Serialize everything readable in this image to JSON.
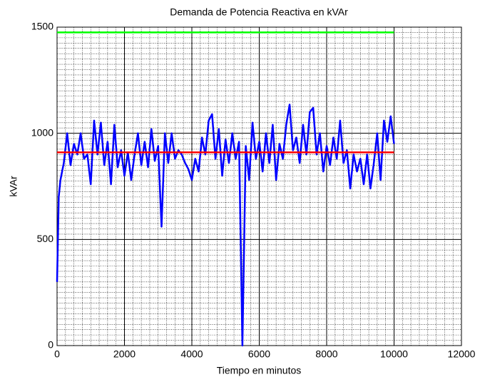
{
  "chart_data": {
    "type": "line",
    "title": "Demanda de Potencia Reactiva en kVAr",
    "x_label": "Tiempo en minutos",
    "y_label": "kVAr",
    "xlim": [
      0,
      12000
    ],
    "xticks": [
      0,
      2000,
      4000,
      6000,
      8000,
      10000,
      12000
    ],
    "ylim": [
      0,
      1500
    ],
    "yticks": [
      0,
      500,
      1000,
      1500
    ],
    "grid": true,
    "minor_grid": true,
    "series": [
      {
        "color": "#0000ff",
        "x": [
          0,
          50,
          100,
          200,
          300,
          400,
          500,
          600,
          700,
          800,
          900,
          1000,
          1100,
          1200,
          1300,
          1400,
          1500,
          1600,
          1700,
          1800,
          1900,
          2000,
          2100,
          2200,
          2300,
          2400,
          2500,
          2600,
          2700,
          2800,
          2900,
          3000,
          3100,
          3200,
          3300,
          3400,
          3500,
          3600,
          3700,
          3800,
          3900,
          4000,
          4100,
          4200,
          4300,
          4400,
          4500,
          4600,
          4700,
          4800,
          4900,
          5000,
          5100,
          5200,
          5300,
          5400,
          5500,
          5600,
          5700,
          5800,
          5900,
          6000,
          6100,
          6200,
          6300,
          6400,
          6500,
          6600,
          6700,
          6800,
          6900,
          7000,
          7100,
          7200,
          7300,
          7400,
          7500,
          7600,
          7700,
          7800,
          7900,
          8000,
          8100,
          8200,
          8300,
          8400,
          8500,
          8600,
          8700,
          8800,
          8900,
          9000,
          9100,
          9200,
          9300,
          9400,
          9500,
          9600,
          9700,
          9800,
          9900,
          10000
        ],
        "values": [
          300,
          700,
          780,
          860,
          1000,
          850,
          950,
          900,
          1000,
          880,
          900,
          760,
          1060,
          900,
          1050,
          850,
          960,
          760,
          1040,
          840,
          920,
          800,
          910,
          780,
          900,
          1000,
          850,
          960,
          840,
          1020,
          870,
          940,
          560,
          1000,
          860,
          1000,
          880,
          920,
          900,
          860,
          830,
          780,
          880,
          820,
          980,
          900,
          1060,
          1090,
          880,
          1020,
          800,
          970,
          860,
          1000,
          880,
          960,
          0,
          940,
          780,
          1050,
          880,
          960,
          820,
          1000,
          860,
          1040,
          780,
          950,
          880,
          1040,
          1135,
          920,
          980,
          860,
          1040,
          900,
          1100,
          1120,
          900,
          1000,
          820,
          940,
          850,
          980,
          880,
          1060,
          860,
          920,
          740,
          900,
          820,
          880,
          760,
          900,
          740,
          860,
          1000,
          780,
          1060,
          960,
          1080,
          950
        ]
      },
      {
        "color": "#ff0000",
        "x": [
          0,
          10000
        ],
        "values": [
          910,
          910
        ]
      },
      {
        "color": "#00ff00",
        "x": [
          0,
          10000
        ],
        "values": [
          1475,
          1475
        ]
      }
    ]
  }
}
